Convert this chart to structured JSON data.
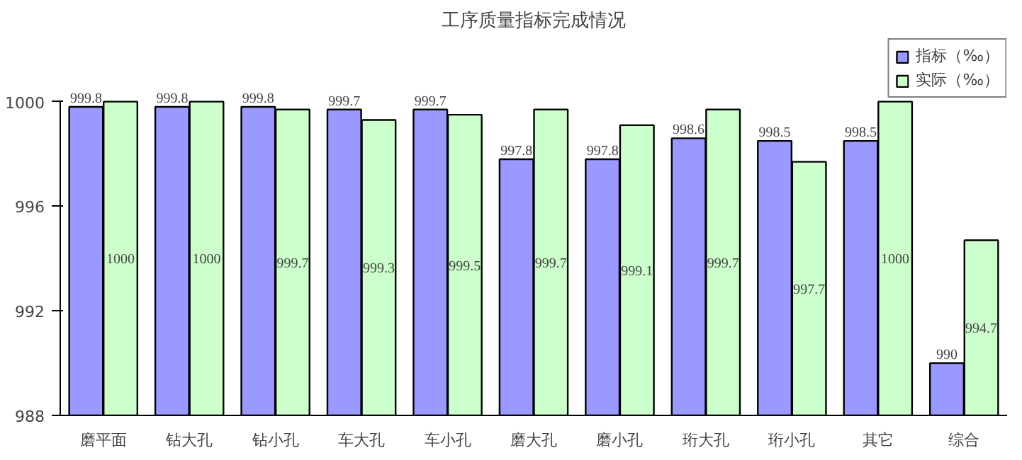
{
  "chart_data": {
    "type": "bar",
    "title": "工序质量指标完成情况",
    "categories": [
      "磨平面",
      "钻大孔",
      "钻小孔",
      "车大孔",
      "车小孔",
      "磨大孔",
      "磨小孔",
      "珩大孔",
      "珩小孔",
      "其它",
      "综合"
    ],
    "series": [
      {
        "name": "指标（‰）",
        "color": "#9999ff",
        "values": [
          999.8,
          999.8,
          999.8,
          999.7,
          999.7,
          997.8,
          997.8,
          998.6,
          998.5,
          998.5,
          990
        ]
      },
      {
        "name": "实际（‰）",
        "color": "#ccffcc",
        "values": [
          1000,
          1000,
          999.7,
          999.3,
          999.5,
          999.7,
          999.1,
          999.7,
          997.7,
          1000,
          994.7
        ]
      }
    ],
    "ylim": [
      988,
      1000
    ],
    "yticks": [
      988,
      992,
      996,
      1000
    ],
    "data_labels": true,
    "legend": "top right",
    "grid": false
  }
}
